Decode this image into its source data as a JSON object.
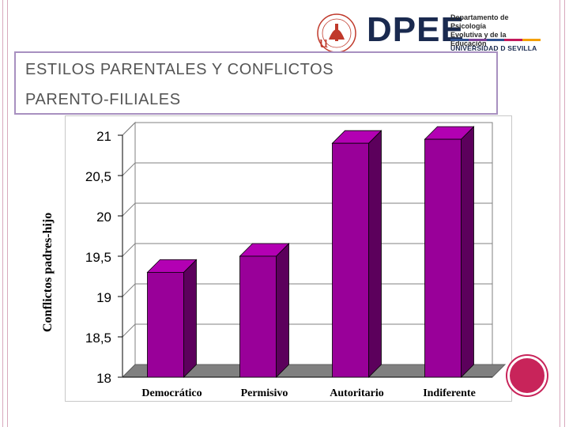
{
  "slide": {
    "title_line1": "ESTILOS PARENTALES Y CONFLICTOS",
    "title_line2": "PARENTO-FILIALES"
  },
  "logo": {
    "brand": "DPEE",
    "dept_line1": "Departamento de Psicología",
    "dept_line2": "Evolutiva y de la Educación",
    "university": "UNIVERSIDAD D SEVILLA",
    "seal_letters": "u",
    "stripe_colors": [
      "#2f4f8f",
      "#7b3f99",
      "#2f4f8f",
      "#c2185b",
      "#f4a000"
    ]
  },
  "colors": {
    "bar_front": "#990099",
    "bar_side": "#5c005c",
    "bar_top": "#b300b3",
    "floor": "#808080",
    "accent": "#c8245a"
  },
  "chart_data": {
    "type": "bar",
    "title": "",
    "xlabel": "",
    "ylabel": "Conflictos padres-hijo",
    "categories": [
      "Democrático",
      "Permisivo",
      "Autoritario",
      "Indiferente"
    ],
    "values": [
      19.3,
      19.5,
      20.9,
      20.95
    ],
    "ylim": [
      18,
      21
    ],
    "yticks": [
      "18",
      "18,5",
      "19",
      "19,5",
      "20",
      "20,5",
      "21"
    ],
    "ytick_values": [
      18,
      18.5,
      19,
      19.5,
      20,
      20.5,
      21
    ],
    "grid": true,
    "style": "3d"
  }
}
